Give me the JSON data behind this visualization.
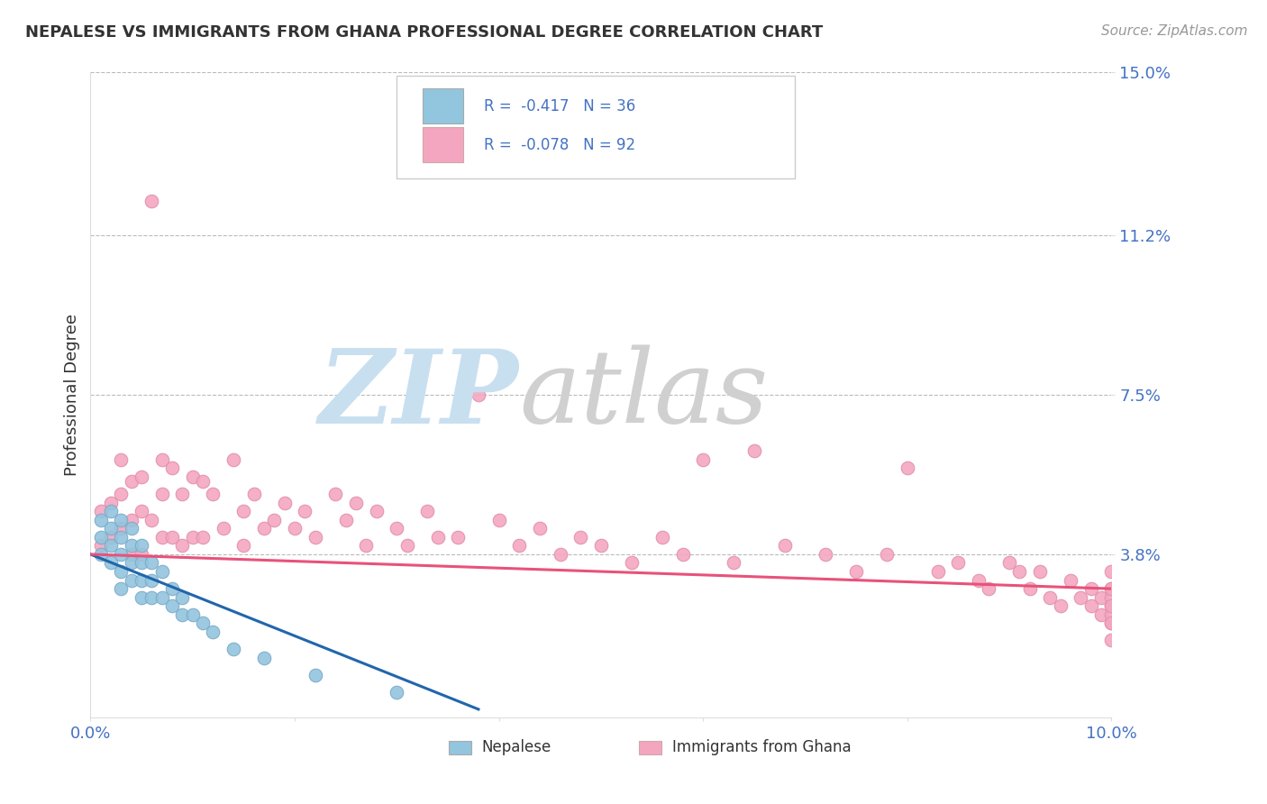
{
  "title": "NEPALESE VS IMMIGRANTS FROM GHANA PROFESSIONAL DEGREE CORRELATION CHART",
  "source": "Source: ZipAtlas.com",
  "ylabel": "Professional Degree",
  "xlim": [
    0.0,
    0.1
  ],
  "ylim": [
    0.0,
    0.15
  ],
  "ytick_vals": [
    0.038,
    0.075,
    0.112,
    0.15
  ],
  "ytick_labels": [
    "3.8%",
    "7.5%",
    "11.2%",
    "15.0%"
  ],
  "xtick_vals": [
    0.0,
    0.02,
    0.04,
    0.06,
    0.08,
    0.1
  ],
  "xtick_labels": [
    "0.0%",
    "",
    "",
    "",
    "",
    "10.0%"
  ],
  "legend_r1": "R =  -0.417   N = 36",
  "legend_r2": "R =  -0.078   N = 92",
  "legend_label1": "Nepalese",
  "legend_label2": "Immigrants from Ghana",
  "color_blue": "#92c5de",
  "color_pink": "#f4a6c0",
  "color_blue_line": "#2166ac",
  "color_pink_line": "#e8527a",
  "grid_color": "#bbbbbb",
  "title_color": "#333333",
  "tick_label_color": "#4472c4",
  "background_color": "#ffffff",
  "watermark_zip_color": "#c8dff0",
  "watermark_atlas_color": "#d0d0d0",
  "nepalese_x": [
    0.001,
    0.001,
    0.001,
    0.002,
    0.002,
    0.002,
    0.002,
    0.003,
    0.003,
    0.003,
    0.003,
    0.003,
    0.004,
    0.004,
    0.004,
    0.004,
    0.005,
    0.005,
    0.005,
    0.005,
    0.006,
    0.006,
    0.006,
    0.007,
    0.007,
    0.008,
    0.008,
    0.009,
    0.009,
    0.01,
    0.011,
    0.012,
    0.014,
    0.017,
    0.022,
    0.03
  ],
  "nepalese_y": [
    0.046,
    0.042,
    0.038,
    0.048,
    0.044,
    0.04,
    0.036,
    0.046,
    0.042,
    0.038,
    0.034,
    0.03,
    0.044,
    0.04,
    0.036,
    0.032,
    0.04,
    0.036,
    0.032,
    0.028,
    0.036,
    0.032,
    0.028,
    0.034,
    0.028,
    0.03,
    0.026,
    0.028,
    0.024,
    0.024,
    0.022,
    0.02,
    0.016,
    0.014,
    0.01,
    0.006
  ],
  "ghana_x": [
    0.001,
    0.001,
    0.002,
    0.002,
    0.003,
    0.003,
    0.003,
    0.004,
    0.004,
    0.004,
    0.005,
    0.005,
    0.005,
    0.006,
    0.006,
    0.007,
    0.007,
    0.007,
    0.008,
    0.008,
    0.009,
    0.009,
    0.01,
    0.01,
    0.011,
    0.011,
    0.012,
    0.013,
    0.014,
    0.015,
    0.015,
    0.016,
    0.017,
    0.018,
    0.019,
    0.02,
    0.021,
    0.022,
    0.024,
    0.025,
    0.026,
    0.027,
    0.028,
    0.03,
    0.031,
    0.033,
    0.034,
    0.036,
    0.038,
    0.04,
    0.042,
    0.044,
    0.046,
    0.048,
    0.05,
    0.053,
    0.056,
    0.058,
    0.06,
    0.063,
    0.065,
    0.068,
    0.072,
    0.075,
    0.078,
    0.08,
    0.083,
    0.085,
    0.087,
    0.088,
    0.09,
    0.091,
    0.092,
    0.093,
    0.094,
    0.095,
    0.096,
    0.097,
    0.098,
    0.098,
    0.099,
    0.099,
    0.1,
    0.1,
    0.1,
    0.1,
    0.1,
    0.1,
    0.1,
    0.1,
    0.1,
    0.1
  ],
  "ghana_y": [
    0.048,
    0.04,
    0.05,
    0.042,
    0.06,
    0.052,
    0.044,
    0.055,
    0.046,
    0.038,
    0.056,
    0.048,
    0.038,
    0.12,
    0.046,
    0.06,
    0.052,
    0.042,
    0.058,
    0.042,
    0.052,
    0.04,
    0.056,
    0.042,
    0.055,
    0.042,
    0.052,
    0.044,
    0.06,
    0.048,
    0.04,
    0.052,
    0.044,
    0.046,
    0.05,
    0.044,
    0.048,
    0.042,
    0.052,
    0.046,
    0.05,
    0.04,
    0.048,
    0.044,
    0.04,
    0.048,
    0.042,
    0.042,
    0.075,
    0.046,
    0.04,
    0.044,
    0.038,
    0.042,
    0.04,
    0.036,
    0.042,
    0.038,
    0.06,
    0.036,
    0.062,
    0.04,
    0.038,
    0.034,
    0.038,
    0.058,
    0.034,
    0.036,
    0.032,
    0.03,
    0.036,
    0.034,
    0.03,
    0.034,
    0.028,
    0.026,
    0.032,
    0.028,
    0.026,
    0.03,
    0.028,
    0.024,
    0.03,
    0.026,
    0.022,
    0.028,
    0.024,
    0.034,
    0.03,
    0.026,
    0.022,
    0.018
  ],
  "blue_trend_x": [
    0.0,
    0.038
  ],
  "blue_trend_y": [
    0.038,
    0.002
  ],
  "pink_trend_x": [
    0.0,
    0.1
  ],
  "pink_trend_y": [
    0.038,
    0.03
  ]
}
